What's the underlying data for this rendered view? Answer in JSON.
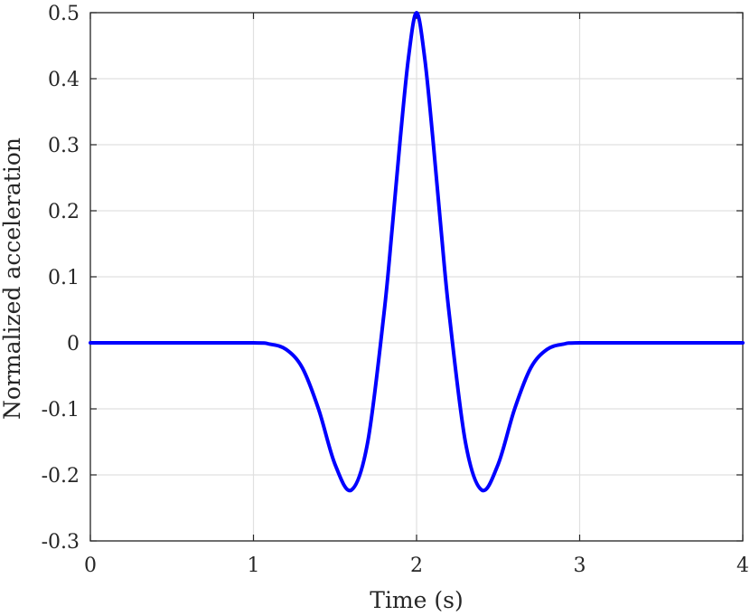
{
  "chart_data": {
    "type": "line",
    "title": "",
    "xlabel": "Time (s)",
    "ylabel": "Normalized acceleration",
    "xlim": [
      0,
      4
    ],
    "ylim": [
      -0.3,
      0.5
    ],
    "grid": true,
    "x_ticks": [
      0,
      1,
      2,
      3,
      4
    ],
    "x_tick_labels": [
      "0",
      "1",
      "2",
      "3",
      "4"
    ],
    "y_ticks": [
      -0.3,
      -0.2,
      -0.1,
      0,
      0.1,
      0.2,
      0.3,
      0.4,
      0.5
    ],
    "y_tick_labels": [
      "-0.3",
      "-0.2",
      "-0.1",
      "0",
      "0.1",
      "0.2",
      "0.3",
      "0.4",
      "0.5"
    ],
    "colors": {
      "line": "#0000ff",
      "grid": "#e0e0e0",
      "axes": "#262626"
    },
    "series": [
      {
        "x": [
          0,
          0.5,
          1.0,
          1.1,
          1.2,
          1.3,
          1.4,
          1.5,
          1.6,
          1.7,
          1.8,
          1.85,
          1.9,
          1.95,
          2.0,
          2.05,
          2.1,
          2.15,
          2.2,
          2.3,
          2.4,
          2.5,
          2.6,
          2.7,
          2.8,
          2.9,
          3.0,
          3.5,
          4.0
        ],
        "y": [
          0,
          0,
          0,
          -0.002,
          -0.01,
          -0.038,
          -0.101,
          -0.184,
          -0.223,
          -0.151,
          0.044,
          0.172,
          0.309,
          0.431,
          0.5,
          0.431,
          0.309,
          0.172,
          0.044,
          -0.151,
          -0.223,
          -0.184,
          -0.101,
          -0.038,
          -0.01,
          -0.002,
          0,
          0,
          0
        ]
      }
    ]
  }
}
